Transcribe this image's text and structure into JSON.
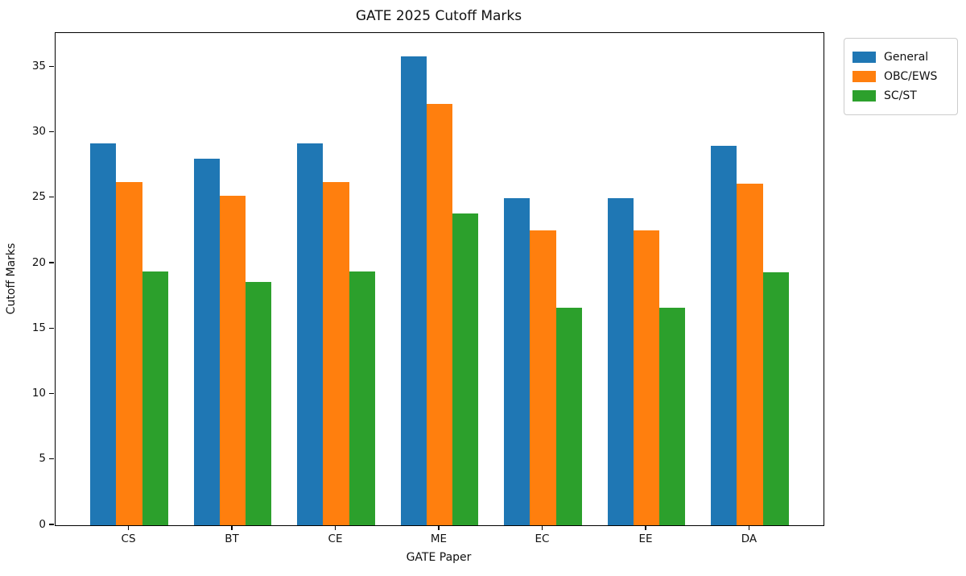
{
  "chart_data": {
    "type": "bar",
    "title": "GATE 2025 Cutoff Marks",
    "xlabel": "GATE Paper",
    "ylabel": "Cutoff Marks",
    "categories": [
      "CS",
      "BT",
      "CE",
      "ME",
      "EC",
      "EE",
      "DA"
    ],
    "series": [
      {
        "name": "General",
        "color": "#1f77b4",
        "values": [
          29.2,
          28.0,
          29.2,
          35.8,
          25.0,
          25.0,
          29.0
        ]
      },
      {
        "name": "OBC/EWS",
        "color": "#ff7f0e",
        "values": [
          26.2,
          25.2,
          26.2,
          32.2,
          22.5,
          22.5,
          26.1
        ]
      },
      {
        "name": "SC/ST",
        "color": "#2ca02c",
        "values": [
          19.4,
          18.6,
          19.4,
          23.8,
          16.6,
          16.6,
          19.3
        ]
      }
    ],
    "ylim": [
      0,
      37.6
    ],
    "yticks": [
      0,
      5,
      10,
      15,
      20,
      25,
      30,
      35
    ],
    "grid": false,
    "legend_position": "outside-upper-right",
    "colors": {
      "axis": "#000000",
      "legend_border": "#cccccc",
      "background": "#ffffff"
    }
  }
}
